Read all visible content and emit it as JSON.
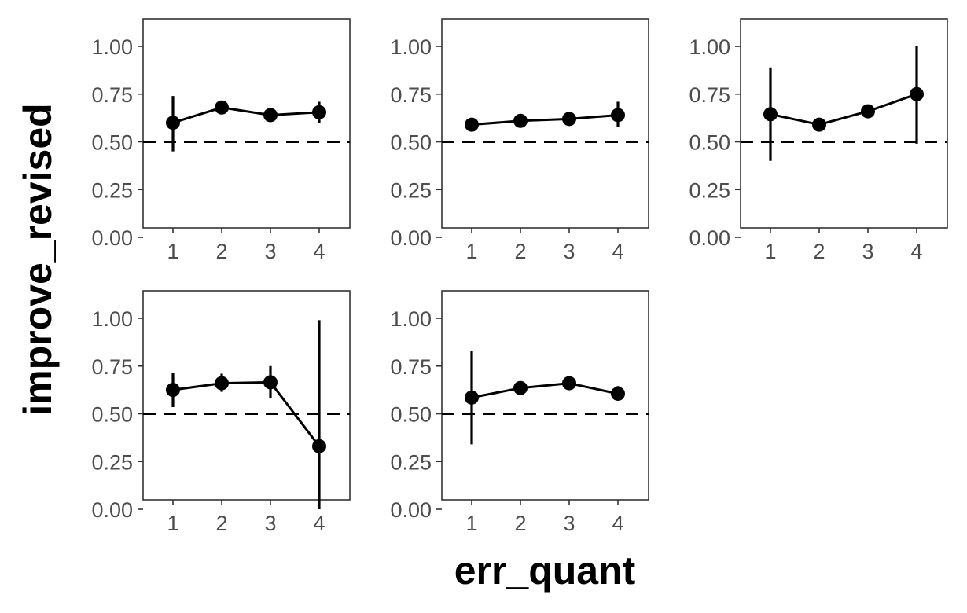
{
  "chart_data": {
    "type": "line",
    "layout": "facet grid, 2 rows x 3 columns, last cell empty",
    "xlabel": "err_quant",
    "ylabel": "improve_revised",
    "x_ticks": [
      "1",
      "2",
      "3",
      "4"
    ],
    "y_ticks": [
      "0.00",
      "0.25",
      "0.50",
      "0.75",
      "1.00"
    ],
    "ylim": [
      0,
      1
    ],
    "reference_line": {
      "y": 0.5,
      "style": "dashed"
    },
    "grid": false,
    "point_color": "#000000",
    "panels": [
      {
        "x": [
          1,
          2,
          3,
          4
        ],
        "values": [
          0.6,
          0.68,
          0.64,
          0.655
        ],
        "lower": [
          0.45,
          0.66,
          0.62,
          0.6
        ],
        "upper": [
          0.74,
          0.69,
          0.65,
          0.71
        ]
      },
      {
        "x": [
          1,
          2,
          3,
          4
        ],
        "values": [
          0.59,
          0.61,
          0.62,
          0.64
        ],
        "lower": [
          0.565,
          0.595,
          0.605,
          0.58
        ],
        "upper": [
          0.615,
          0.625,
          0.635,
          0.71
        ]
      },
      {
        "x": [
          1,
          2,
          3,
          4
        ],
        "values": [
          0.645,
          0.59,
          0.66,
          0.75
        ],
        "lower": [
          0.4,
          0.575,
          0.645,
          0.49
        ],
        "upper": [
          0.89,
          0.605,
          0.675,
          1.0
        ]
      },
      {
        "x": [
          1,
          2,
          3,
          4
        ],
        "values": [
          0.625,
          0.66,
          0.665,
          0.33
        ],
        "lower": [
          0.535,
          0.615,
          0.58,
          0.0
        ],
        "upper": [
          0.715,
          0.71,
          0.75,
          0.99
        ]
      },
      {
        "x": [
          1,
          2,
          3,
          4
        ],
        "values": [
          0.585,
          0.635,
          0.66,
          0.605
        ],
        "lower": [
          0.34,
          0.615,
          0.645,
          0.57
        ],
        "upper": [
          0.83,
          0.655,
          0.675,
          0.645
        ]
      }
    ]
  }
}
